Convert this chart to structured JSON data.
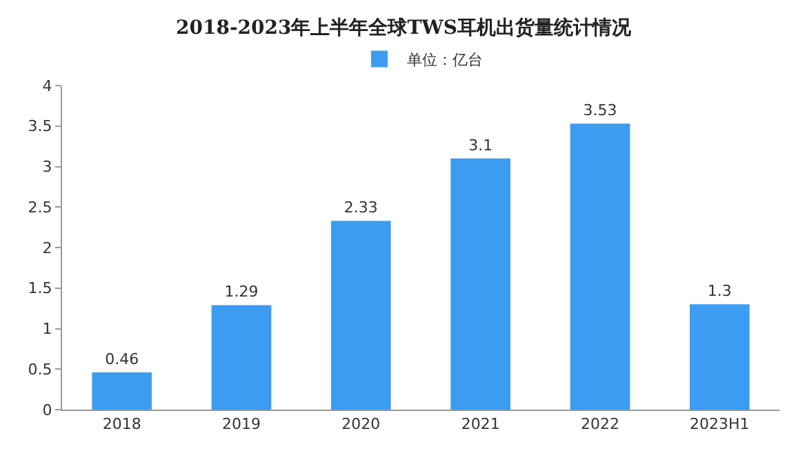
{
  "chart_data": {
    "type": "bar",
    "title": "2018-2023年上半年全球TWS耳机出货量统计情况",
    "categories": [
      "2018",
      "2019",
      "2020",
      "2021",
      "2022",
      "2023H1"
    ],
    "series": [
      {
        "name": "单位：亿台",
        "color": "#3c9cf2",
        "values": [
          0.46,
          1.29,
          2.33,
          3.1,
          3.53,
          1.3
        ]
      }
    ],
    "ylim": [
      0,
      4
    ],
    "yticks": [
      0,
      0.5,
      1,
      1.5,
      2,
      2.5,
      3,
      3.5,
      4
    ],
    "data_labels": true,
    "grid": false,
    "legend": "top"
  }
}
